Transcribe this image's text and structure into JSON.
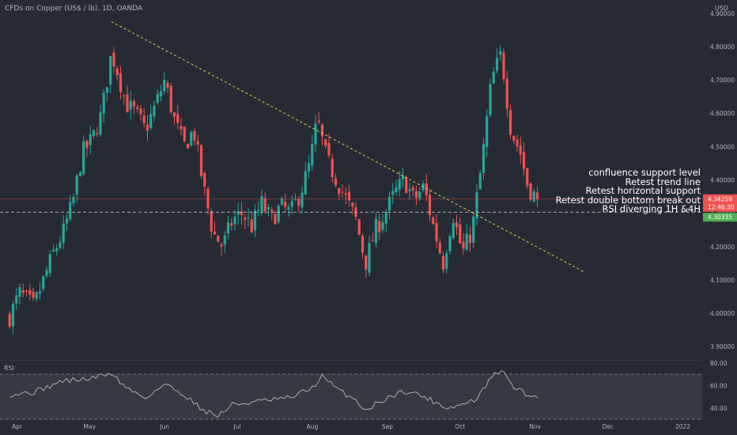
{
  "header": {
    "symbol_title": "CFDs on Copper (US$ / lb), 1D, OANDA",
    "currency": "USD"
  },
  "annotations": [
    "confluence support level",
    "Retest trend line",
    "Retest horizontal support",
    "Retest double bottom break out",
    "RSI diverging 1H &4H"
  ],
  "colors": {
    "background": "#262a35",
    "up": "#26a69a",
    "down": "#ef5350",
    "trendline": "#e0d94a",
    "price_badge": "#ef5350",
    "support_badge": "#4caf50",
    "rsi_line": "#c8c8c8"
  },
  "chart_data": [
    {
      "type": "candlestick",
      "title": "CFDs on Copper (US$ / lb), 1D, OANDA",
      "x_ticks": [
        "Apr",
        "May",
        "Jun",
        "Jul",
        "Aug",
        "Sep",
        "Oct",
        "Nov",
        "Dec",
        "2022"
      ],
      "y_ticks": [
        "3.90000",
        "4.00000",
        "4.10000",
        "4.20000",
        "4.30000",
        "4.40000",
        "4.50000",
        "4.60000",
        "4.70000",
        "4.80000",
        "4.90000"
      ],
      "ylim": [
        3.86,
        4.94
      ],
      "last_price": "4.34259",
      "countdown": "12:46:30",
      "support_level": "4.30335",
      "support_value": 4.30335,
      "last_value": 4.34259,
      "trendline": [
        {
          "date": "2021-05-10",
          "value": 4.875
        },
        {
          "date": "2021-11-21",
          "value": 4.125
        }
      ],
      "close_path": [
        [
          "2021-03-29",
          3.99
        ],
        [
          "2021-04-02",
          4.06
        ],
        [
          "2021-04-08",
          4.02
        ],
        [
          "2021-04-12",
          4.1
        ],
        [
          "2021-04-16",
          4.18
        ],
        [
          "2021-04-20",
          4.24
        ],
        [
          "2021-04-24",
          4.33
        ],
        [
          "2021-04-28",
          4.48
        ],
        [
          "2021-05-02",
          4.52
        ],
        [
          "2021-05-06",
          4.6
        ],
        [
          "2021-05-10",
          4.78
        ],
        [
          "2021-05-12",
          4.74
        ],
        [
          "2021-05-16",
          4.63
        ],
        [
          "2021-05-20",
          4.6
        ],
        [
          "2021-05-24",
          4.55
        ],
        [
          "2021-05-28",
          4.62
        ],
        [
          "2021-06-01",
          4.7
        ],
        [
          "2021-06-05",
          4.58
        ],
        [
          "2021-06-09",
          4.5
        ],
        [
          "2021-06-13",
          4.55
        ],
        [
          "2021-06-17",
          4.38
        ],
        [
          "2021-06-21",
          4.24
        ],
        [
          "2021-06-25",
          4.2
        ],
        [
          "2021-06-29",
          4.28
        ],
        [
          "2021-07-03",
          4.3
        ],
        [
          "2021-07-07",
          4.26
        ],
        [
          "2021-07-11",
          4.33
        ],
        [
          "2021-07-15",
          4.28
        ],
        [
          "2021-07-19",
          4.32
        ],
        [
          "2021-07-23",
          4.3
        ],
        [
          "2021-07-27",
          4.36
        ],
        [
          "2021-07-31",
          4.45
        ],
        [
          "2021-08-03",
          4.58
        ],
        [
          "2021-08-07",
          4.46
        ],
        [
          "2021-08-11",
          4.4
        ],
        [
          "2021-08-15",
          4.34
        ],
        [
          "2021-08-19",
          4.28
        ],
        [
          "2021-08-23",
          4.15
        ],
        [
          "2021-08-27",
          4.25
        ],
        [
          "2021-08-31",
          4.3
        ],
        [
          "2021-09-04",
          4.36
        ],
        [
          "2021-09-08",
          4.4
        ],
        [
          "2021-09-12",
          4.34
        ],
        [
          "2021-09-16",
          4.38
        ],
        [
          "2021-09-20",
          4.26
        ],
        [
          "2021-09-24",
          4.15
        ],
        [
          "2021-09-28",
          4.3
        ],
        [
          "2021-10-02",
          4.18
        ],
        [
          "2021-10-06",
          4.25
        ],
        [
          "2021-10-10",
          4.45
        ],
        [
          "2021-10-14",
          4.7
        ],
        [
          "2021-10-18",
          4.78
        ],
        [
          "2021-10-22",
          4.55
        ],
        [
          "2021-10-26",
          4.48
        ],
        [
          "2021-10-29",
          4.38
        ],
        [
          "2021-11-02",
          4.342
        ]
      ]
    },
    {
      "type": "line",
      "title": "RSI",
      "y_ticks": [
        "40.00",
        "60.00",
        "80.00"
      ],
      "ylim": [
        30,
        82
      ],
      "band": [
        70,
        30
      ],
      "path": [
        [
          "2021-03-29",
          52
        ],
        [
          "2021-04-08",
          54
        ],
        [
          "2021-04-20",
          64
        ],
        [
          "2021-05-01",
          66
        ],
        [
          "2021-05-10",
          71
        ],
        [
          "2021-05-16",
          58
        ],
        [
          "2021-05-24",
          49
        ],
        [
          "2021-06-01",
          61
        ],
        [
          "2021-06-09",
          52
        ],
        [
          "2021-06-17",
          38
        ],
        [
          "2021-06-23",
          33
        ],
        [
          "2021-06-29",
          43
        ],
        [
          "2021-07-07",
          45
        ],
        [
          "2021-07-15",
          47
        ],
        [
          "2021-07-23",
          49
        ],
        [
          "2021-08-01",
          58
        ],
        [
          "2021-08-05",
          68
        ],
        [
          "2021-08-11",
          57
        ],
        [
          "2021-08-19",
          47
        ],
        [
          "2021-08-23",
          38
        ],
        [
          "2021-08-31",
          48
        ],
        [
          "2021-09-08",
          55
        ],
        [
          "2021-09-14",
          52
        ],
        [
          "2021-09-20",
          46
        ],
        [
          "2021-09-26",
          40
        ],
        [
          "2021-10-02",
          43
        ],
        [
          "2021-10-08",
          48
        ],
        [
          "2021-10-14",
          67
        ],
        [
          "2021-10-18",
          74
        ],
        [
          "2021-10-22",
          61
        ],
        [
          "2021-10-28",
          52
        ],
        [
          "2021-11-02",
          49
        ]
      ]
    }
  ]
}
